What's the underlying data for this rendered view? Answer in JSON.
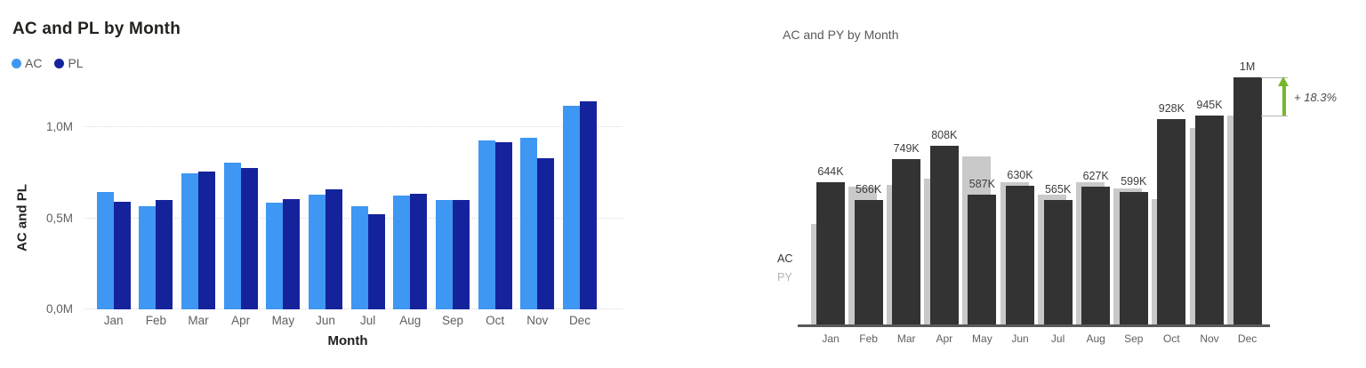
{
  "chart_data": [
    {
      "type": "bar",
      "title": "AC and PL by Month",
      "xlabel": "Month",
      "ylabel": "AC and PL",
      "y_ticks": [
        "1,0M",
        "0,5M",
        "0,0M"
      ],
      "ylim_thousands": [
        0,
        1200
      ],
      "grid": "dotted horizontal",
      "legend_position": "top-left",
      "values_unit": "thousands",
      "categories": [
        "Jan",
        "Feb",
        "Mar",
        "Apr",
        "May",
        "Jun",
        "Jul",
        "Aug",
        "Sep",
        "Oct",
        "Nov",
        "Dec"
      ],
      "series": [
        {
          "name": "AC",
          "color": "#3E97F2",
          "values": [
            644,
            566,
            749,
            808,
            587,
            630,
            565,
            627,
            599,
            928,
            945,
            1118
          ]
        },
        {
          "name": "PL",
          "color": "#14239C",
          "values": [
            590,
            600,
            755,
            775,
            605,
            660,
            525,
            635,
            600,
            920,
            830,
            1145
          ]
        }
      ]
    },
    {
      "type": "bar",
      "title": "AC and PY by Month",
      "xlabel": "",
      "ylabel": "",
      "ylim_thousands": [
        0,
        1200
      ],
      "grid": "none",
      "values_unit": "thousands",
      "categories": [
        "Jan",
        "Feb",
        "Mar",
        "Apr",
        "May",
        "Jun",
        "Jul",
        "Aug",
        "Sep",
        "Oct",
        "Nov",
        "Dec"
      ],
      "series": [
        {
          "name": "AC",
          "color": "#333333",
          "values": [
            644,
            566,
            749,
            808,
            587,
            630,
            565,
            627,
            599,
            928,
            945,
            1118
          ]
        },
        {
          "name": "PY",
          "color": "#C9C9C9",
          "values": [
            455,
            624,
            633,
            660,
            760,
            645,
            587,
            645,
            617,
            570,
            888,
            945
          ]
        }
      ],
      "data_labels": [
        "644K",
        "566K",
        "749K",
        "808K",
        "587K",
        "630K",
        "565K",
        "627K",
        "599K",
        "928K",
        "945K",
        "1M"
      ],
      "row_labels": [
        {
          "label": "AC",
          "color": "#333333"
        },
        {
          "label": "PY",
          "color": "#B3B3B3"
        }
      ],
      "annotation": {
        "label": "+ 18.3%",
        "month": "Dec",
        "arrow_color": "#76B82C"
      }
    }
  ]
}
